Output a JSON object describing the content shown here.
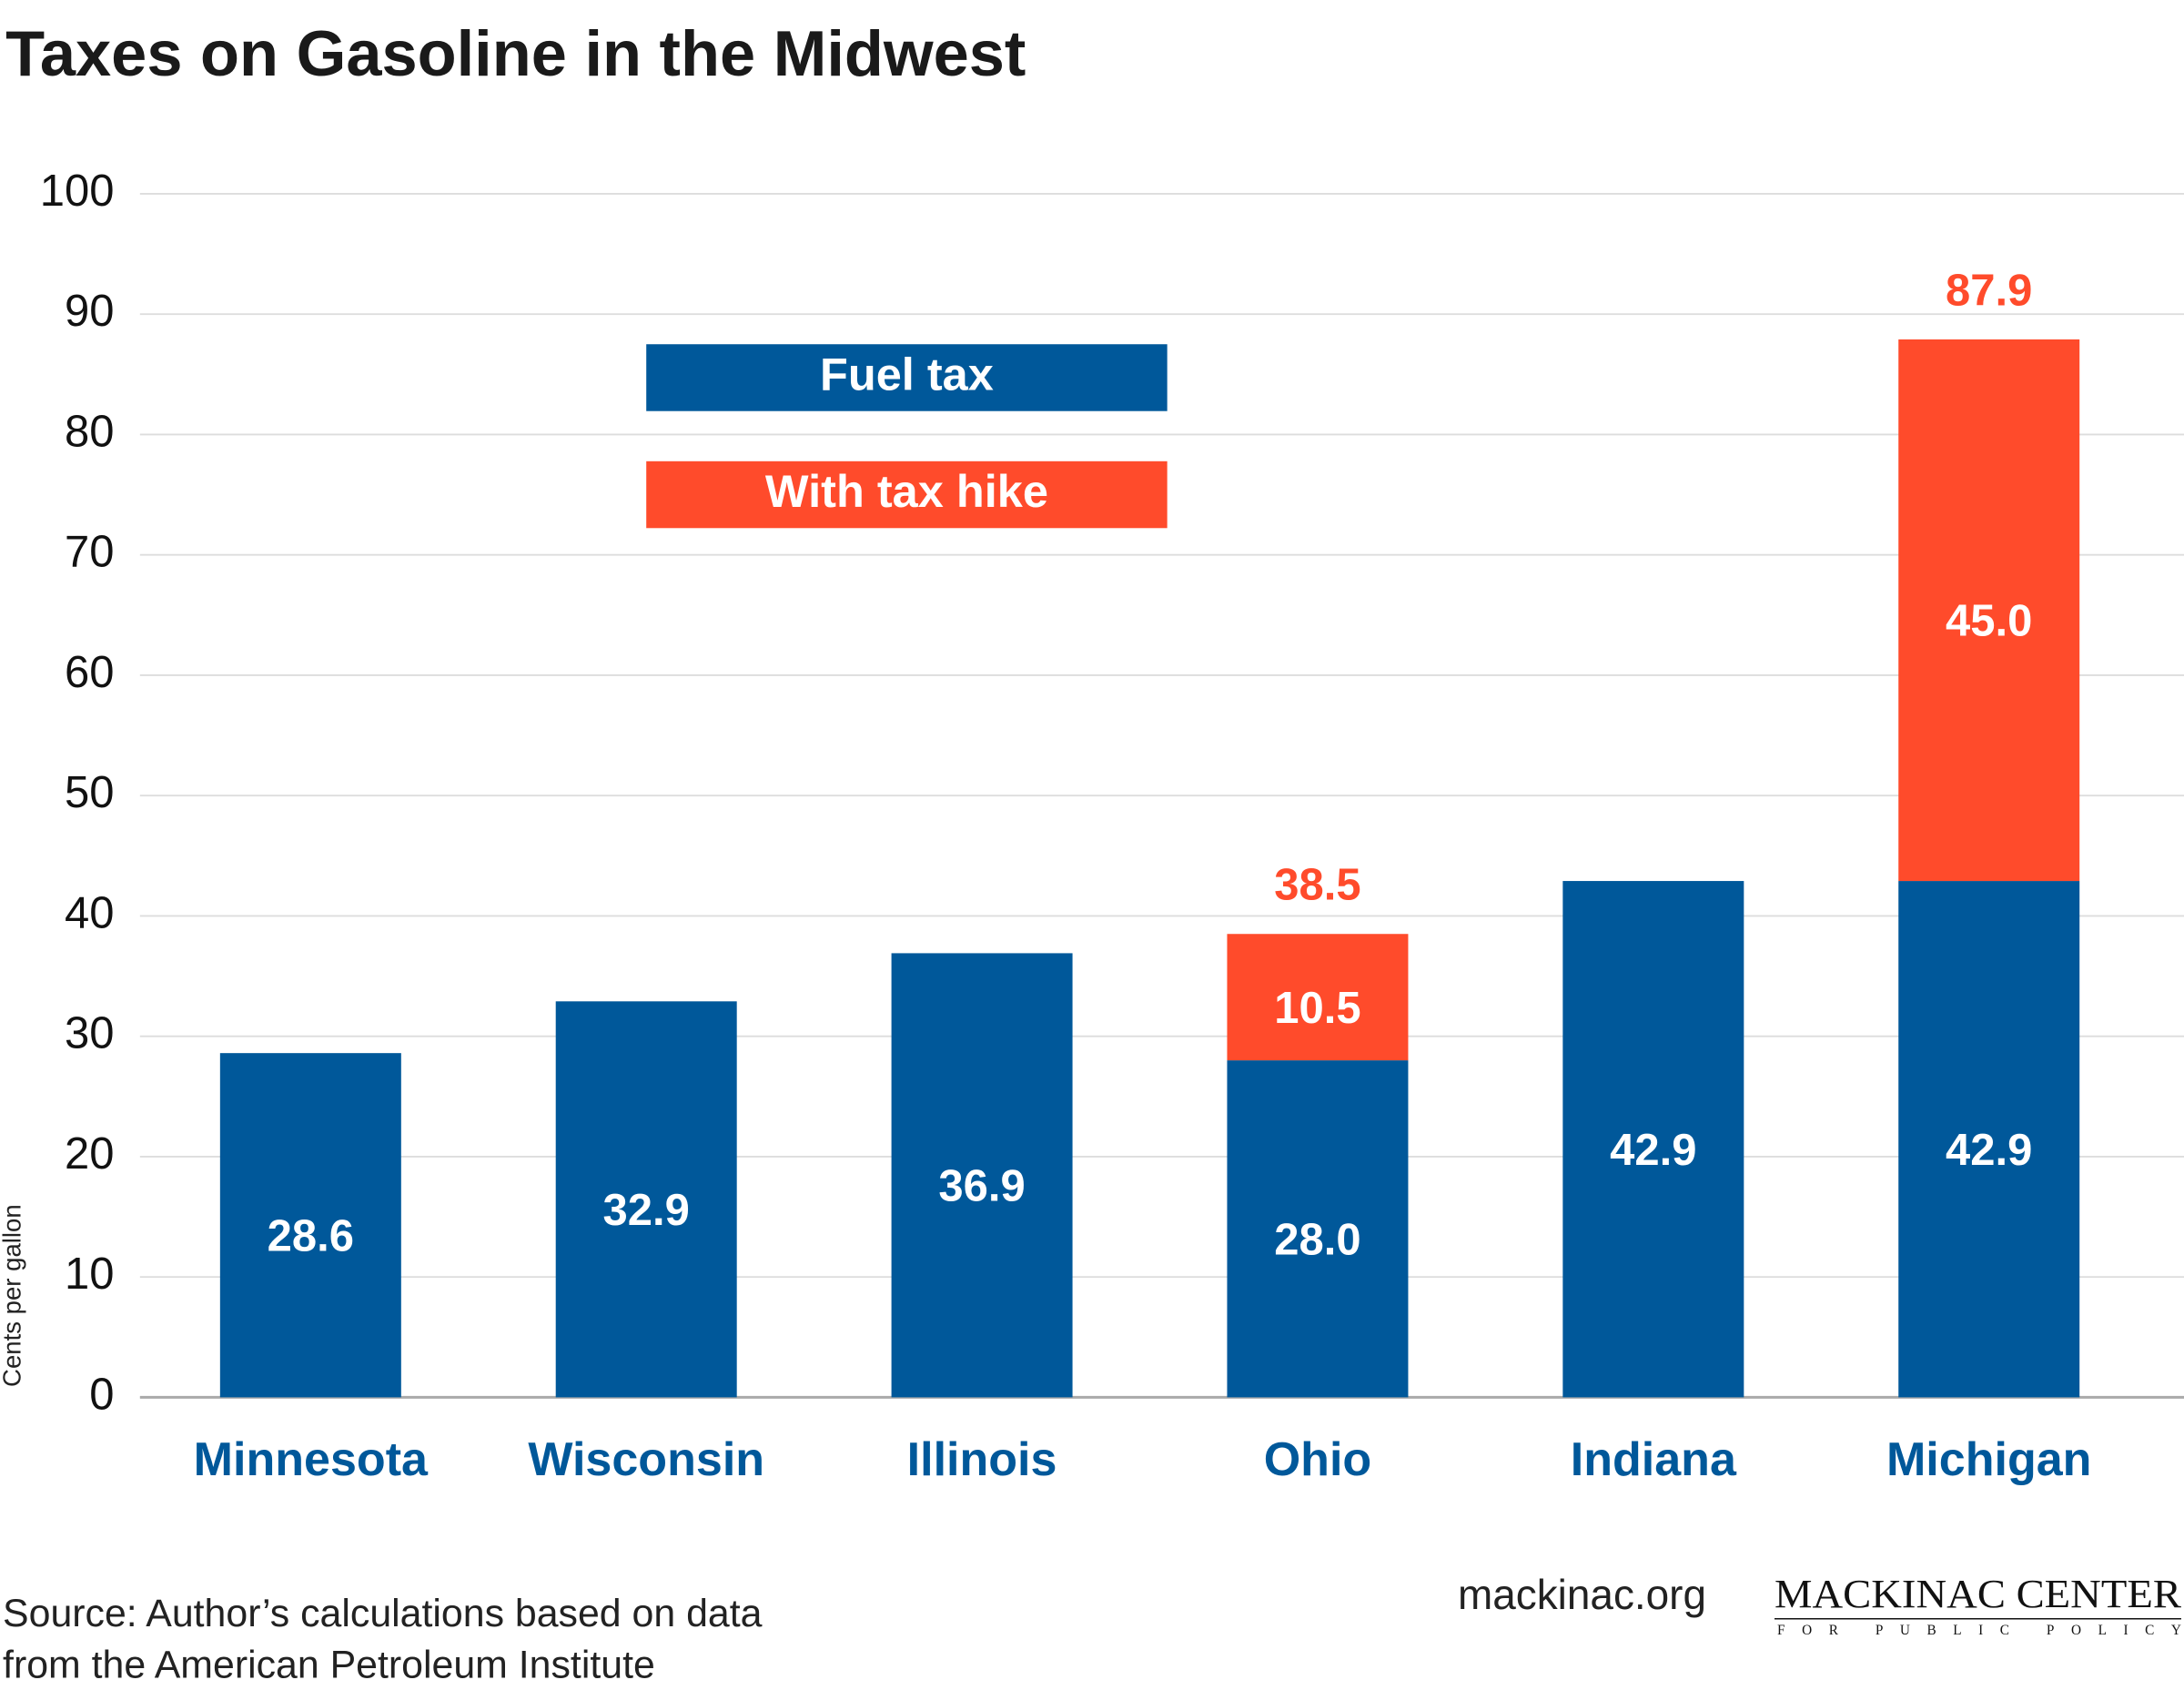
{
  "chart_data": {
    "type": "stacked-bar",
    "title": "Taxes on Gasoline in the Midwest",
    "y_label": "Cents per gallon",
    "categories": [
      "Minnesota",
      "Wisconsin",
      "Illinois",
      "Ohio",
      "Indiana",
      "Michigan"
    ],
    "series": [
      {
        "name": "Fuel tax",
        "color": "#00589a",
        "values": [
          28.6,
          32.9,
          36.9,
          28.0,
          42.9,
          42.9
        ],
        "value_labels": [
          "28.6",
          "32.9",
          "36.9",
          "28.0",
          "42.9",
          "42.9"
        ]
      },
      {
        "name": "With tax hike",
        "color": "#ff4b2b",
        "values": [
          null,
          null,
          null,
          10.5,
          null,
          45.0
        ],
        "value_labels": [
          null,
          null,
          null,
          "10.5",
          null,
          "45.0"
        ]
      }
    ],
    "totals": [
      null,
      null,
      null,
      38.5,
      null,
      87.9
    ],
    "ylim": [
      0,
      100
    ],
    "yticks": [
      0,
      10,
      20,
      30,
      40,
      50,
      60,
      70,
      80,
      90,
      100
    ],
    "grid": true
  },
  "footer": {
    "source": [
      "Source: Author’s calculations based on data",
      "from the American Petroleum Institute"
    ],
    "website": "mackinac.org",
    "logo": "MACKINAC CENTER",
    "logo_tagline": "FOR PUBLIC POLICY"
  }
}
